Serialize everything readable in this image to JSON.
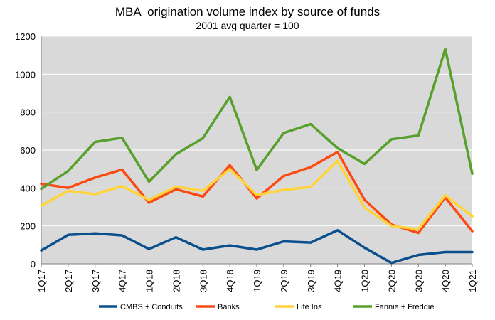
{
  "chart_data": {
    "type": "line",
    "title": "MBA  origination volume index by source of funds",
    "subtitle": "2001 avg quarter = 100",
    "categories": [
      "1Q17",
      "2Q17",
      "3Q17",
      "4Q17",
      "1Q18",
      "2Q18",
      "3Q18",
      "4Q18",
      "1Q19",
      "2Q19",
      "3Q19",
      "4Q19",
      "1Q20",
      "2Q20",
      "3Q20",
      "4Q20",
      "1Q21"
    ],
    "ylim": [
      0,
      1200
    ],
    "yticks": [
      0,
      200,
      400,
      600,
      800,
      1000,
      1200
    ],
    "grid": true,
    "legend_position": "bottom",
    "plot_background": "#d9d9d9",
    "series": [
      {
        "name": "CMBS + Conduits",
        "color": "#0b4f8c",
        "values": [
          70,
          153,
          160,
          150,
          78,
          140,
          75,
          97,
          75,
          118,
          112,
          177,
          85,
          5,
          47,
          62,
          62
        ]
      },
      {
        "name": "Banks",
        "color": "#fb4a12",
        "values": [
          422,
          400,
          455,
          497,
          322,
          393,
          355,
          520,
          345,
          463,
          510,
          590,
          338,
          207,
          163,
          350,
          172
        ]
      },
      {
        "name": "Life Ins",
        "color": "#ffd33a",
        "values": [
          307,
          385,
          367,
          410,
          337,
          407,
          385,
          500,
          363,
          390,
          405,
          543,
          297,
          200,
          183,
          362,
          250
        ]
      },
      {
        "name": "Fannie + Freddie",
        "color": "#57a02c",
        "values": [
          395,
          490,
          643,
          665,
          433,
          578,
          663,
          880,
          495,
          690,
          737,
          610,
          527,
          657,
          677,
          1133,
          475
        ]
      }
    ]
  }
}
